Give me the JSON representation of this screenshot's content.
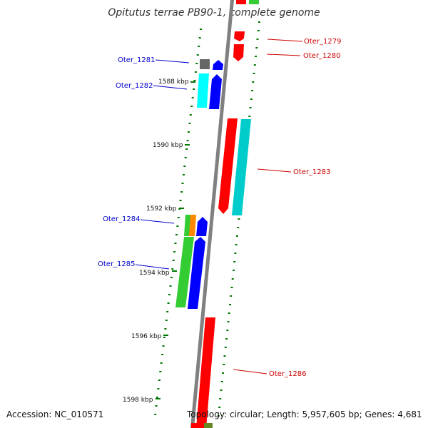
{
  "title": "Opitutus terrae PB90-1, complete genome",
  "footer": {
    "accession": "Accession: NC_010571",
    "stats": "Topology: circular; Length: 5,957,605 bp; Genes: 4,681"
  },
  "scale_labels": [
    "1588 kbp",
    "1590 kbp",
    "1592 kbp",
    "1594 kbp",
    "1596 kbp",
    "1598 kbp"
  ],
  "gene_labels": {
    "oter_1279": "Oter_1279",
    "oter_1280": "Oter_1280",
    "oter_1281": "Oter_1281",
    "oter_1282": "Oter_1282",
    "oter_1283": "Oter_1283",
    "oter_1284": "Oter_1284",
    "oter_1285": "Oter_1285",
    "oter_1286": "Oter_1286"
  },
  "colors": {
    "backbone": "#808080",
    "forward_gene": "#ff0000",
    "reverse_gene": "#0000ff",
    "forward_label": "#cc0000",
    "reverse_label": "#0000cc",
    "cyan_feature": "#00cccc",
    "aqua_feature": "#00ffff",
    "green_feature": "#33cc33",
    "orange_feature": "#ff8800",
    "gray_feature": "#666666",
    "olive_feature": "#668822",
    "tick_mark": "#007700"
  }
}
